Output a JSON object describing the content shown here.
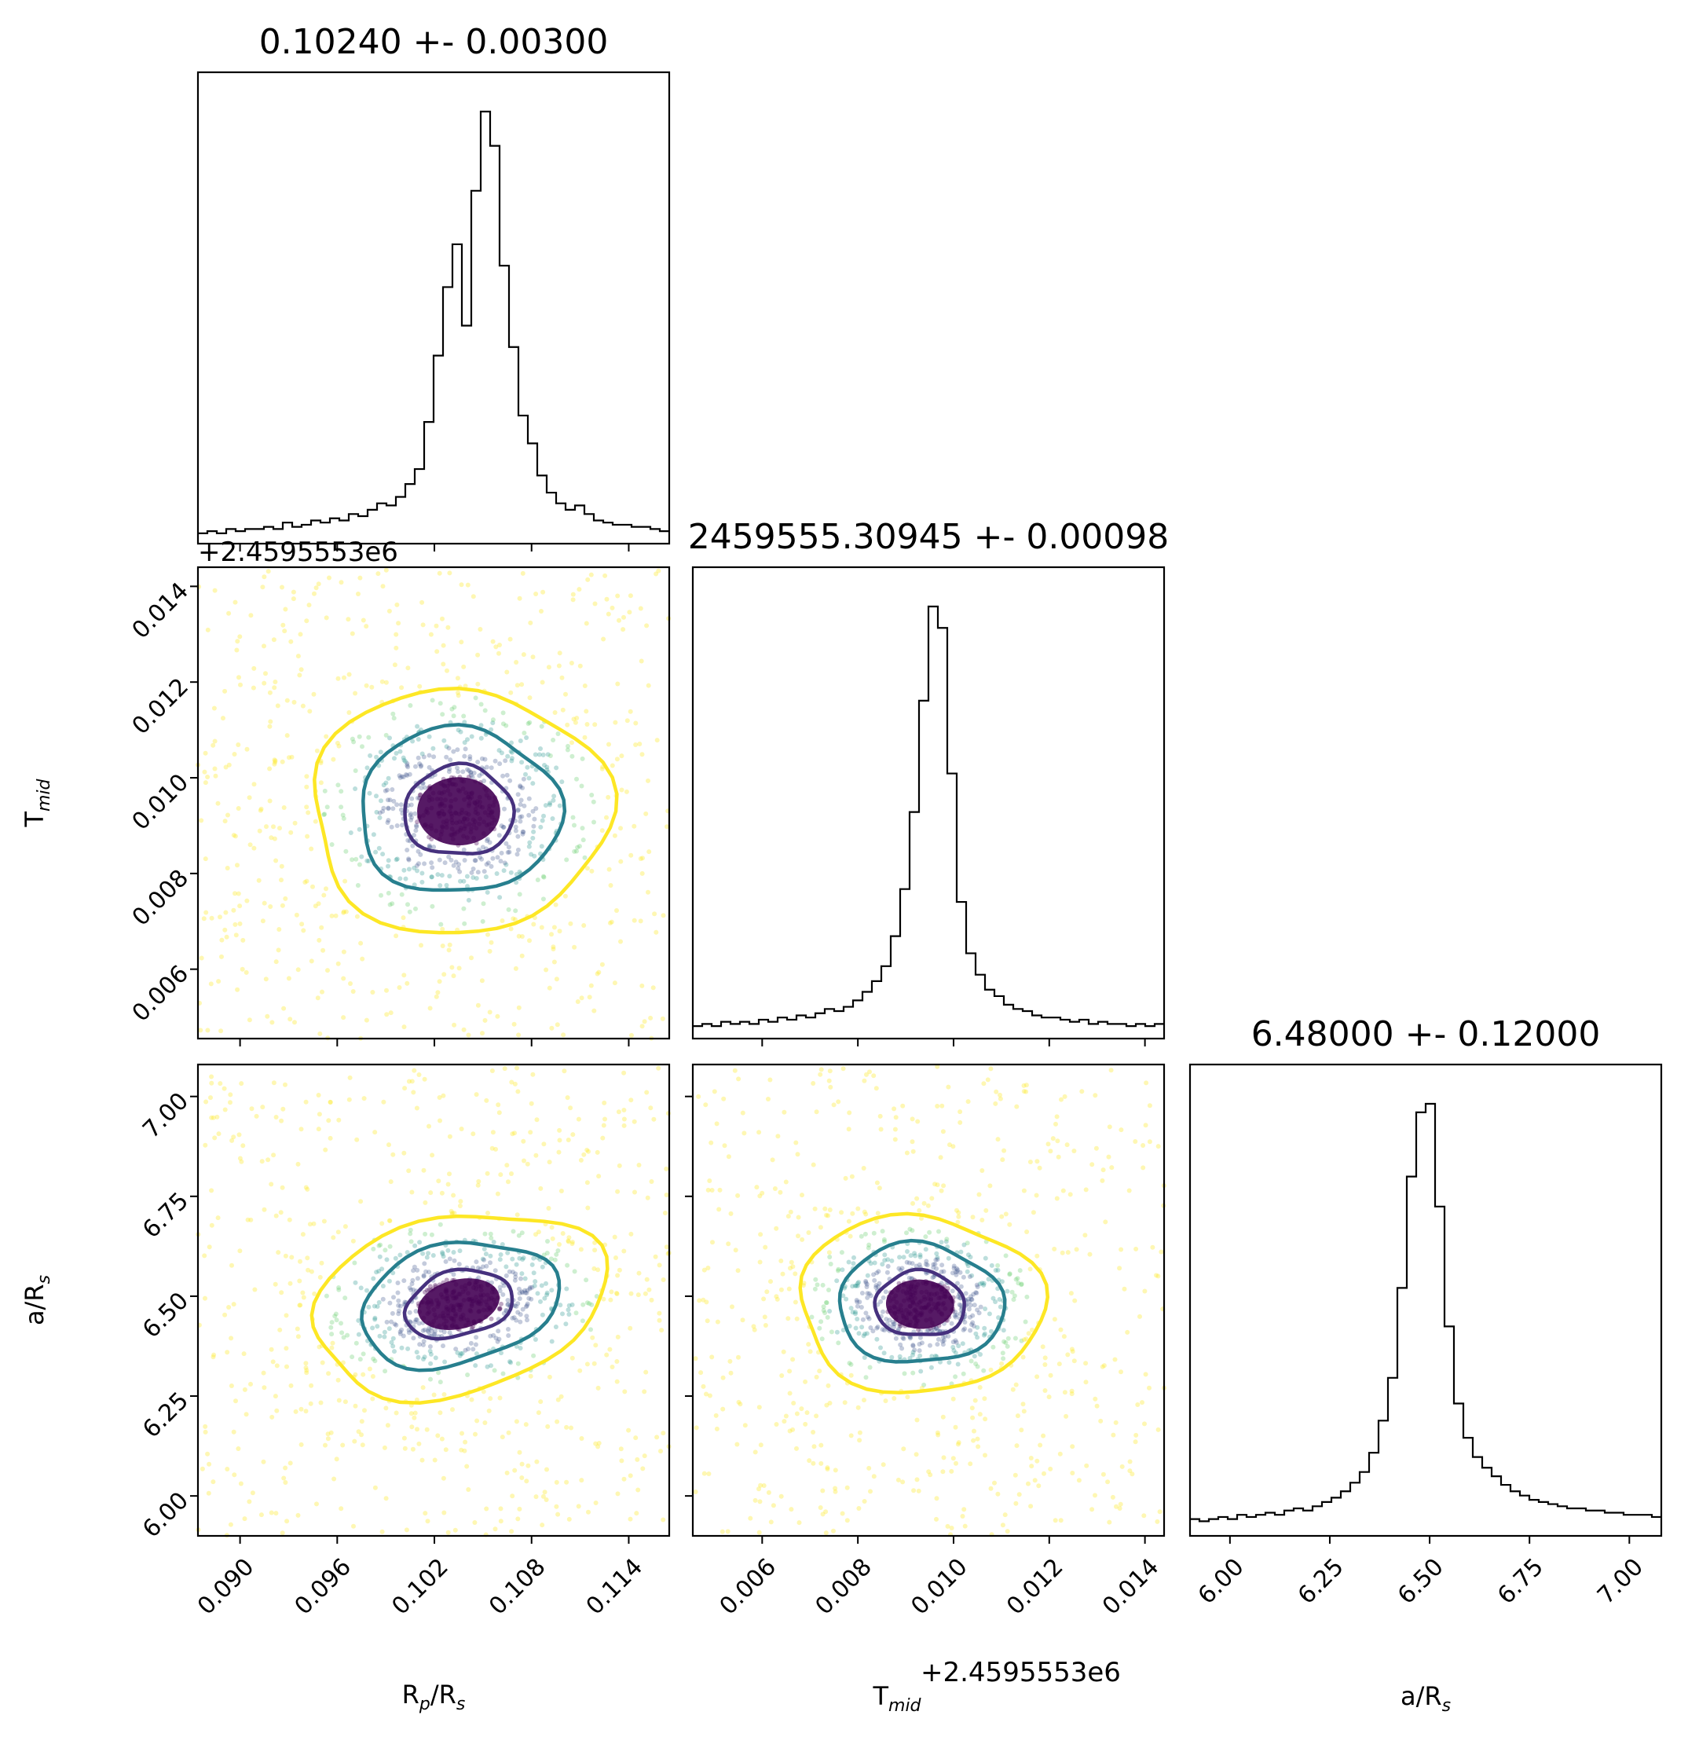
{
  "chart_data": {
    "type": "scatter",
    "titles": [
      "0.10240 +- 0.00300",
      "2459555.30945 +- 0.00098",
      "6.48000 +- 0.12000"
    ],
    "parameters": [
      {
        "label_main": "R",
        "label_sub": "p",
        "label_tail": "/R",
        "label_sub2": "s",
        "range": [
          0.0874,
          0.1165
        ],
        "ticks": [
          0.09,
          0.096,
          0.102,
          0.108,
          0.114
        ],
        "tick_labels": [
          "0.090",
          "0.096",
          "0.102",
          "0.108",
          "0.114"
        ],
        "center": 0.1035,
        "width": 0.0027,
        "offset_text": ""
      },
      {
        "label_main": "T",
        "label_sub": "mid",
        "label_tail": "",
        "label_sub2": "",
        "range": [
          0.00455,
          0.0144
        ],
        "ticks": [
          0.006,
          0.008,
          0.01,
          0.012,
          0.014
        ],
        "tick_labels": [
          "0.006",
          "0.008",
          "0.010",
          "0.012",
          "0.014"
        ],
        "center": 0.0093,
        "width": 0.00075,
        "offset_text": "+2.4595553e6"
      },
      {
        "label_main": "a/R",
        "label_sub": "s",
        "label_tail": "",
        "label_sub2": "",
        "range": [
          5.9,
          7.08
        ],
        "ticks": [
          6.0,
          6.25,
          6.5,
          6.75,
          7.0
        ],
        "tick_labels": [
          "6.00",
          "6.25",
          "6.50",
          "6.75",
          "7.00"
        ],
        "center": 6.48,
        "width": 0.065,
        "offset_text": ""
      }
    ],
    "histograms": [
      {
        "bins": 50,
        "counts": [
          3,
          4,
          3,
          5,
          4,
          5,
          5,
          6,
          5,
          8,
          6,
          7,
          9,
          8,
          10,
          9,
          12,
          11,
          14,
          17,
          16,
          20,
          26,
          33,
          55,
          86,
          118,
          138,
          100,
          163,
          200,
          184,
          128,
          90,
          58,
          45,
          30,
          22,
          17,
          14,
          16,
          12,
          9,
          8,
          7,
          7,
          6,
          6,
          5,
          4
        ]
      },
      {
        "bins": 50,
        "counts": [
          4,
          5,
          4,
          6,
          5,
          6,
          5,
          7,
          6,
          8,
          7,
          9,
          8,
          10,
          12,
          11,
          13,
          16,
          20,
          25,
          32,
          46,
          68,
          104,
          156,
          200,
          190,
          122,
          62,
          38,
          28,
          21,
          18,
          14,
          12,
          11,
          9,
          8,
          8,
          7,
          6,
          7,
          5,
          6,
          5,
          5,
          4,
          5,
          4,
          5
        ]
      },
      {
        "bins": 50,
        "counts": [
          6,
          5,
          6,
          7,
          6,
          8,
          7,
          8,
          9,
          8,
          10,
          11,
          10,
          12,
          14,
          16,
          19,
          23,
          28,
          37,
          52,
          72,
          114,
          166,
          196,
          200,
          152,
          96,
          60,
          44,
          35,
          30,
          26,
          22,
          19,
          17,
          15,
          14,
          13,
          12,
          11,
          11,
          10,
          10,
          9,
          9,
          8,
          8,
          8,
          7
        ]
      }
    ],
    "correlations": {
      "1-0": 0.0,
      "2-0": 0.3,
      "2-1": -0.05
    },
    "contour_levels": [
      "inner (purple)",
      "middle (teal)",
      "outer (yellow)"
    ],
    "colors": {
      "inner": "#46317e",
      "middle": "#277f8e",
      "outer": "#fde725",
      "core": "#440154"
    }
  }
}
